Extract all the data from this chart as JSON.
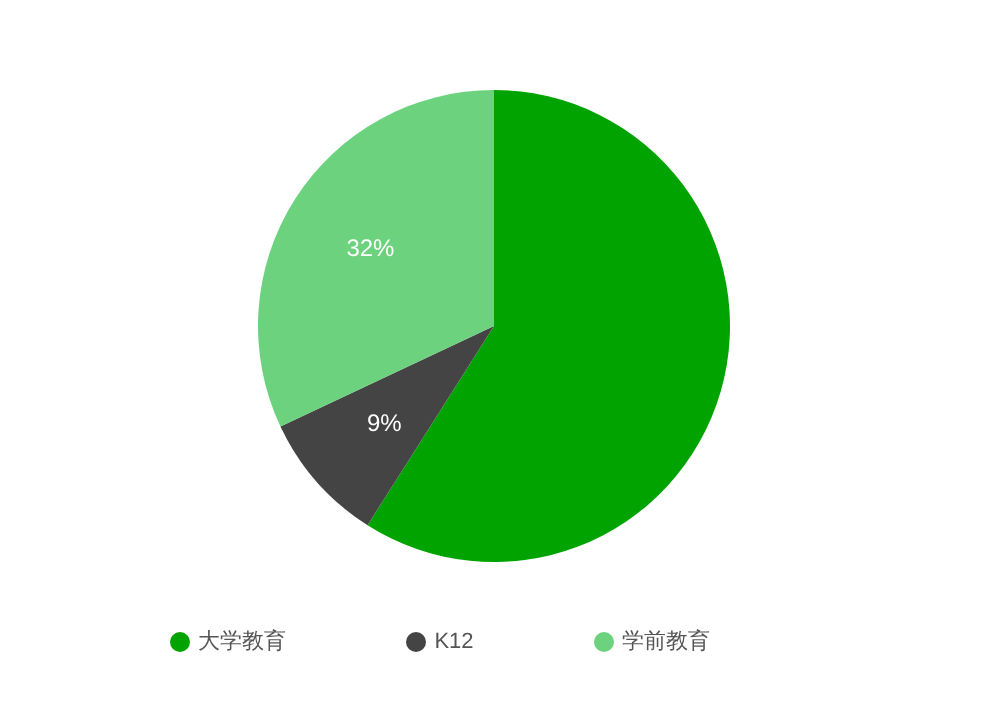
{
  "chart_data": {
    "type": "pie",
    "categories": [
      "大学教育",
      "K12",
      "学前教育"
    ],
    "values": [
      59,
      9,
      32
    ],
    "colors": [
      "#00a300",
      "#444444",
      "#6dd27e"
    ],
    "value_labels": [
      null,
      "9%",
      "32%"
    ],
    "legend": "bottom"
  }
}
